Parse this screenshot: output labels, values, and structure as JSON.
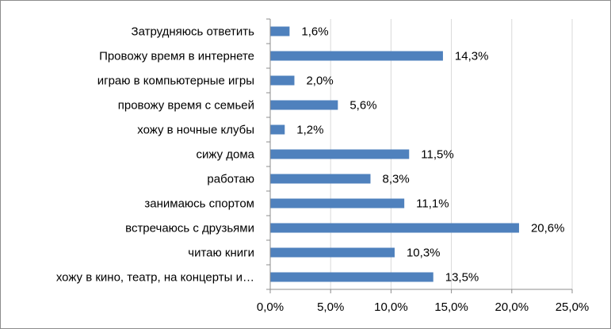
{
  "chart_data": {
    "type": "bar",
    "orientation": "horizontal",
    "title": "",
    "xlabel": "",
    "ylabel": "",
    "categories": [
      "Затрудняюсь ответить",
      "Провожу время в интернете",
      "играю в компьютерные игры",
      "провожу время с семьей",
      "хожу в ночные клубы",
      "сижу дома",
      "работаю",
      "занимаюсь спортом",
      "встречаюсь с друзьями",
      "читаю книги",
      "хожу в кино, театр, на концерты  и…"
    ],
    "values": [
      1.6,
      14.3,
      2.0,
      5.6,
      1.2,
      11.5,
      8.3,
      11.1,
      20.6,
      10.3,
      13.5
    ],
    "value_labels": [
      "1,6%",
      "14,3%",
      "2,0%",
      "5,6%",
      "1,2%",
      "11,5%",
      "8,3%",
      "11,1%",
      "20,6%",
      "10,3%",
      "13,5%"
    ],
    "xlim": [
      0,
      25
    ],
    "xticks": [
      0,
      5,
      10,
      15,
      20,
      25
    ],
    "xtick_labels": [
      "0,0%",
      "5,0%",
      "10,0%",
      "15,0%",
      "20,0%",
      "25,0%"
    ],
    "grid": "vertical",
    "legend": "none",
    "bar_color": "#4f81bd",
    "grid_color": "#d9d9d9"
  }
}
